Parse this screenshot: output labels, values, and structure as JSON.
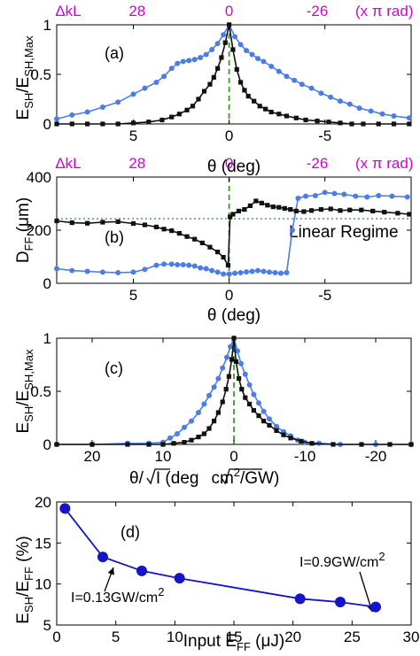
{
  "colors": {
    "blue": "#4a7de8",
    "black": "#111111",
    "dk_magenta": "#d400d4",
    "zero_line": "#3a9a2a",
    "linear_line": "#2f8f9d",
    "navy": "#1414c8"
  },
  "chart_data": [
    {
      "type": "line",
      "panel_label": "(a)",
      "ylabel_main": "E",
      "ylabel_sub1": "SH",
      "ylabel_slash": "/E",
      "ylabel_sub2": "SH,Max",
      "xlabel": "θ (deg)",
      "xlim": [
        9,
        -9.5
      ],
      "ylim": [
        0,
        1
      ],
      "xticks": [
        {
          "v": 5,
          "t": "5"
        },
        {
          "v": 0,
          "t": "0"
        },
        {
          "v": -5,
          "t": "-5"
        }
      ],
      "yticks": [
        {
          "v": 0,
          "t": "0"
        },
        {
          "v": 0.5,
          "t": "0.5"
        },
        {
          "v": 1,
          "t": "1"
        }
      ],
      "top_labels": [
        {
          "v": 8.4,
          "t": "ΔkL"
        },
        {
          "v": 4.8,
          "t": "28"
        },
        {
          "v": 0,
          "t": "0"
        },
        {
          "v": -4.6,
          "t": "-26"
        },
        {
          "v": -8.1,
          "t": "(x π rad)"
        }
      ],
      "series": [
        {
          "color": "blue",
          "marker": "circle",
          "x": [
            9,
            8.2,
            7.4,
            6.6,
            5.8,
            5.0,
            4.4,
            3.8,
            3.4,
            3.0,
            2.7,
            2.4,
            2.1,
            1.8,
            1.5,
            1.2,
            0.9,
            0.6,
            0.3,
            0,
            -0.3,
            -0.6,
            -0.9,
            -1.2,
            -1.5,
            -1.8,
            -2.2,
            -2.6,
            -3.0,
            -3.4,
            -3.8,
            -4.3,
            -4.8,
            -5.3,
            -5.8,
            -6.3,
            -6.8,
            -7.4,
            -8.0,
            -8.6,
            -9.4
          ],
          "y": [
            0.05,
            0.09,
            0.12,
            0.17,
            0.22,
            0.3,
            0.36,
            0.42,
            0.48,
            0.56,
            0.61,
            0.63,
            0.64,
            0.65,
            0.67,
            0.7,
            0.75,
            0.81,
            0.9,
            1.0,
            0.88,
            0.8,
            0.74,
            0.7,
            0.66,
            0.63,
            0.58,
            0.53,
            0.48,
            0.44,
            0.4,
            0.36,
            0.31,
            0.27,
            0.23,
            0.2,
            0.16,
            0.13,
            0.1,
            0.08,
            0.06
          ]
        },
        {
          "color": "black",
          "marker": "square",
          "x": [
            9,
            8.2,
            7.4,
            6.6,
            5.8,
            5.0,
            4.2,
            3.5,
            3.0,
            2.6,
            2.2,
            1.9,
            1.6,
            1.3,
            1.0,
            0.8,
            0.6,
            0.4,
            0.2,
            0,
            -0.2,
            -0.4,
            -0.6,
            -0.8,
            -1.0,
            -1.3,
            -1.6,
            -1.9,
            -2.2,
            -2.6,
            -3.0,
            -3.5,
            -4.0,
            -4.6,
            -5.2,
            -5.8,
            -6.4,
            -7.0,
            -7.8,
            -8.6,
            -9.4
          ],
          "y": [
            0,
            0,
            0,
            0,
            0,
            0.01,
            0.02,
            0.04,
            0.07,
            0.1,
            0.14,
            0.18,
            0.25,
            0.33,
            0.4,
            0.47,
            0.56,
            0.67,
            0.82,
            1.0,
            0.75,
            0.55,
            0.42,
            0.34,
            0.28,
            0.23,
            0.18,
            0.15,
            0.12,
            0.1,
            0.08,
            0.06,
            0.04,
            0.03,
            0.02,
            0.01,
            0,
            0,
            0,
            0,
            0
          ]
        }
      ]
    },
    {
      "type": "line",
      "panel_label": "(b)",
      "ylabel_main": "D",
      "ylabel_sub1": "FF",
      "ylabel_unit": " (μm)",
      "xlabel": "θ (deg)",
      "xlim": [
        9,
        -9.5
      ],
      "ylim": [
        0,
        400
      ],
      "xticks": [
        {
          "v": 5,
          "t": "5"
        },
        {
          "v": 0,
          "t": "0"
        },
        {
          "v": -5,
          "t": "-5"
        }
      ],
      "yticks": [
        {
          "v": 0,
          "t": "0"
        },
        {
          "v": 200,
          "t": "200"
        },
        {
          "v": 400,
          "t": "400"
        }
      ],
      "top_labels": [
        {
          "v": 8.4,
          "t": "ΔkL"
        },
        {
          "v": 4.8,
          "t": "28"
        },
        {
          "v": 0,
          "t": "0"
        },
        {
          "v": -4.6,
          "t": "-26"
        },
        {
          "v": -8.1,
          "t": "(x π rad)"
        }
      ],
      "reference_line": {
        "y": 243,
        "label": "Linear Regime"
      },
      "series": [
        {
          "color": "blue",
          "marker": "circle",
          "x": [
            9,
            8.2,
            7.4,
            6.6,
            5.8,
            5.0,
            4.4,
            3.8,
            3.4,
            3.0,
            2.7,
            2.4,
            2.1,
            1.8,
            1.5,
            1.2,
            0.9,
            0.6,
            0.3,
            0,
            -0.3,
            -0.6,
            -0.9,
            -1.2,
            -1.5,
            -1.8,
            -2.1,
            -2.4,
            -2.7,
            -3.0,
            -3.3,
            -3.6,
            -4.0,
            -4.5,
            -5.0,
            -5.5,
            -6.0,
            -6.6,
            -7.2,
            -7.8,
            -8.5,
            -9.3
          ],
          "y": [
            55,
            48,
            45,
            42,
            40,
            42,
            52,
            68,
            72,
            72,
            70,
            70,
            68,
            65,
            58,
            55,
            48,
            42,
            35,
            35,
            38,
            40,
            43,
            45,
            48,
            45,
            42,
            40,
            38,
            40,
            200,
            320,
            328,
            330,
            342,
            338,
            335,
            328,
            325,
            330,
            328,
            325
          ]
        },
        {
          "color": "black",
          "marker": "square",
          "x": [
            9,
            8.2,
            7.4,
            6.6,
            5.8,
            5.0,
            4.4,
            3.8,
            3.4,
            3.0,
            2.6,
            2.2,
            1.8,
            1.4,
            1.0,
            0.6,
            0.3,
            0.05,
            -0.05,
            -0.2,
            -0.5,
            -0.8,
            -1.1,
            -1.4,
            -1.7,
            -2.0,
            -2.3,
            -2.6,
            -2.9,
            -3.2,
            -3.5,
            -3.9,
            -4.3,
            -4.8,
            -5.3,
            -5.8,
            -6.3,
            -6.9,
            -7.5,
            -8.1,
            -8.8,
            -9.4
          ],
          "y": [
            235,
            228,
            226,
            230,
            232,
            225,
            220,
            212,
            204,
            198,
            188,
            176,
            166,
            152,
            136,
            118,
            98,
            68,
            250,
            260,
            272,
            278,
            292,
            310,
            302,
            294,
            288,
            286,
            282,
            278,
            272,
            270,
            274,
            278,
            280,
            274,
            276,
            276,
            272,
            268,
            264,
            260
          ]
        }
      ]
    },
    {
      "type": "line",
      "panel_label": "(c)",
      "ylabel_main": "E",
      "ylabel_sub1": "SH",
      "ylabel_slash": "/E",
      "ylabel_sub2": "SH,Max",
      "xlabel_pre": "θ/",
      "xlabel_rad1": "I",
      "xlabel_mid": " (deg",
      "xlabel_rad2": "cm",
      "xlabel_sup": "2",
      "xlabel_post": "/GW)",
      "xlim": [
        25,
        -25
      ],
      "ylim": [
        0,
        1
      ],
      "xticks": [
        {
          "v": 20,
          "t": "20"
        },
        {
          "v": 10,
          "t": "10"
        },
        {
          "v": 0,
          "t": "0"
        },
        {
          "v": -10,
          "t": "-10"
        },
        {
          "v": -20,
          "t": "-20"
        }
      ],
      "yticks": [
        {
          "v": 0,
          "t": "0"
        },
        {
          "v": 0.5,
          "t": "0.5"
        },
        {
          "v": 1,
          "t": "1"
        }
      ],
      "series": [
        {
          "color": "blue",
          "marker": "circle",
          "x": [
            25,
            20,
            15,
            12,
            10,
            9.0,
            8.0,
            7.0,
            6.0,
            5.0,
            4.2,
            3.5,
            2.8,
            2.2,
            1.6,
            1.0,
            0.5,
            0,
            -0.5,
            -1.0,
            -1.6,
            -2.2,
            -2.8,
            -3.5,
            -4.2,
            -5.0,
            -6.0,
            -7.0,
            -8.0,
            -9.0,
            -10,
            -12,
            -15,
            -20,
            -25
          ],
          "y": [
            0,
            0,
            0.01,
            0.01,
            0.02,
            0.06,
            0.1,
            0.16,
            0.22,
            0.3,
            0.38,
            0.46,
            0.54,
            0.62,
            0.72,
            0.82,
            0.92,
            1.0,
            0.88,
            0.76,
            0.66,
            0.56,
            0.47,
            0.39,
            0.31,
            0.24,
            0.17,
            0.12,
            0.08,
            0.04,
            0.02,
            0.01,
            0,
            0,
            0
          ]
        },
        {
          "color": "black",
          "marker": "square",
          "x": [
            25,
            20,
            15,
            12,
            10,
            8.5,
            7.0,
            6.0,
            5.0,
            4.2,
            3.5,
            2.8,
            2.2,
            1.6,
            1.1,
            0.7,
            0.3,
            0,
            -0.3,
            -0.7,
            -1.1,
            -1.6,
            -2.2,
            -2.8,
            -3.5,
            -4.2,
            -5.0,
            -6.0,
            -7.0,
            -8.0,
            -9.5,
            -11,
            -14,
            -18,
            -22,
            -25
          ],
          "y": [
            0,
            0,
            0,
            0,
            0,
            0.01,
            0.02,
            0.04,
            0.07,
            0.1,
            0.15,
            0.22,
            0.3,
            0.4,
            0.52,
            0.64,
            0.8,
            1.0,
            0.78,
            0.62,
            0.52,
            0.44,
            0.38,
            0.32,
            0.27,
            0.22,
            0.18,
            0.13,
            0.09,
            0.06,
            0.03,
            0.01,
            0,
            0,
            0,
            0
          ]
        }
      ]
    },
    {
      "type": "line",
      "panel_label": "(d)",
      "ylabel_main": "E",
      "ylabel_sub1": "SH",
      "ylabel_slash": "/E",
      "ylabel_sub2": "FF",
      "ylabel_unit": " (%)",
      "xlabel_pre": "Input E",
      "xlabel_sub": "FF",
      "xlabel_post": " (μJ)",
      "xlim": [
        0,
        30
      ],
      "ylim": [
        5,
        20
      ],
      "xticks": [
        {
          "v": 0,
          "t": "0"
        },
        {
          "v": 5,
          "t": "5"
        },
        {
          "v": 10,
          "t": "10"
        },
        {
          "v": 15,
          "t": "15"
        },
        {
          "v": 20,
          "t": "20"
        },
        {
          "v": 25,
          "t": "25"
        },
        {
          "v": 30,
          "t": "30"
        }
      ],
      "yticks": [
        {
          "v": 5,
          "t": "5"
        },
        {
          "v": 10,
          "t": "10"
        },
        {
          "v": 15,
          "t": "15"
        },
        {
          "v": 20,
          "t": "20"
        }
      ],
      "annotations": [
        {
          "text": "I=0.13GW/cm",
          "sup": "2"
        },
        {
          "text": "I=0.9GW/cm",
          "sup": "2"
        }
      ],
      "series": [
        {
          "color": "navy",
          "marker": "circle",
          "x": [
            0.7,
            3.9,
            7.2,
            10.4,
            20.6,
            24.0,
            27.0
          ],
          "y": [
            19.2,
            13.3,
            11.6,
            10.7,
            8.2,
            7.8,
            7.2
          ]
        }
      ]
    }
  ]
}
